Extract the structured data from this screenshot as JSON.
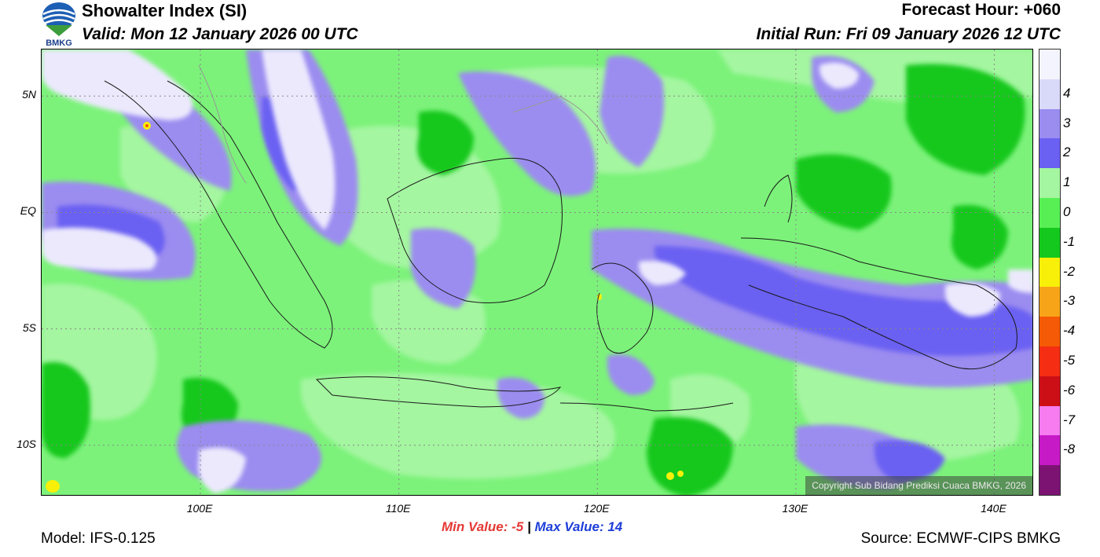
{
  "header": {
    "title": "Showalter Index (SI)",
    "valid": "Valid: Mon 12 January 2026 00 UTC",
    "forecast_hour": "Forecast Hour: +060",
    "initial_run": "Initial Run: Fri 09 January 2026 12 UTC",
    "logo_text": "BMKG"
  },
  "map": {
    "region": "Indonesia",
    "lon_range": [
      92,
      142
    ],
    "lat_range": [
      -12.2,
      7
    ],
    "lat_labels": [
      {
        "lat": 5,
        "text": "5N"
      },
      {
        "lat": 0,
        "text": "EQ"
      },
      {
        "lat": -5,
        "text": "5S"
      },
      {
        "lat": -10,
        "text": "10S"
      }
    ],
    "lon_labels": [
      {
        "lon": 100,
        "text": "100E"
      },
      {
        "lon": 110,
        "text": "110E"
      },
      {
        "lon": 120,
        "text": "120E"
      },
      {
        "lon": 130,
        "text": "130E"
      },
      {
        "lon": 140,
        "text": "140E"
      }
    ],
    "copyright": "Copyright Sub Bidang Prediksi Cuaca BMKG, 2026",
    "background_color": "#7cf27a"
  },
  "colorbar": {
    "levels": [
      {
        "label": "",
        "color": "#f4f4fe"
      },
      {
        "label": "4",
        "color": "#d9d9fa"
      },
      {
        "label": "3",
        "color": "#9b8cf0"
      },
      {
        "label": "2",
        "color": "#6a60f2"
      },
      {
        "label": "1",
        "color": "#a4f6a0"
      },
      {
        "label": "0",
        "color": "#58ef55"
      },
      {
        "label": "-1",
        "color": "#14c81e"
      },
      {
        "label": "-2",
        "color": "#f8f008"
      },
      {
        "label": "-3",
        "color": "#f8a418"
      },
      {
        "label": "-4",
        "color": "#f55a06"
      },
      {
        "label": "-5",
        "color": "#f52d12"
      },
      {
        "label": "-6",
        "color": "#cc0f17"
      },
      {
        "label": "-7",
        "color": "#f77cf0"
      },
      {
        "label": "-8",
        "color": "#c61ac6"
      },
      {
        "label": "",
        "color": "#7c1373"
      }
    ]
  },
  "stats": {
    "min_text": "Min Value:  -5",
    "separator": "|",
    "max_text": "Max Value:  14"
  },
  "footer": {
    "model": "Model: IFS-0.125",
    "source": "Source: ECMWF-CIPS BMKG"
  }
}
